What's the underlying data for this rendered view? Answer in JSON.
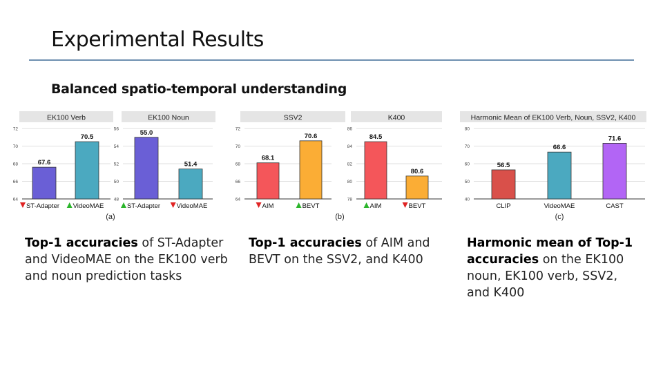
{
  "slide": {
    "title": "Experimental Results",
    "subtitle": "Balanced spatio-temporal understanding"
  },
  "captions": [
    {
      "bold": "Top-1 accuracies",
      "rest": " of ST-Adapter and VideoMAE on the EK100 verb and noun prediction tasks"
    },
    {
      "bold": "Top-1 accuracies",
      "rest": " of AIM and BEVT on the SSV2, and K400"
    },
    {
      "bold": "Harmonic mean of Top-1 accuracies",
      "rest": " on the EK100 noun, EK100 verb, SSV2, and K400"
    }
  ],
  "colors": {
    "st_adapter": "#6a5fd6",
    "videomae": "#4ba9c0",
    "aim": "#f4565a",
    "bevt": "#fbad35",
    "clip": "#d9504a",
    "cast": "#b265f5",
    "up_marker": "#2bb52b",
    "down_marker": "#e02424",
    "panel_header_bg": "#e5e5e5",
    "rule": "#6d8fb0"
  },
  "chart_data": [
    {
      "type": "bar",
      "title": "EK100 Verb",
      "panel_label": "(a)",
      "ylim": [
        64,
        72
      ],
      "yticks": [
        64,
        66,
        68,
        70,
        72
      ],
      "categories": [
        "ST-Adapter",
        "VideoMAE"
      ],
      "values": [
        67.6,
        70.5
      ],
      "labels": [
        "67.6",
        "70.5"
      ],
      "markers": [
        "down",
        "up"
      ],
      "colors": [
        "st_adapter",
        "videomae"
      ]
    },
    {
      "type": "bar",
      "title": "EK100 Noun",
      "panel_label": "",
      "ylim": [
        48,
        56
      ],
      "yticks": [
        48,
        50,
        52,
        54,
        56
      ],
      "categories": [
        "ST-Adapter",
        "VideoMAE"
      ],
      "values": [
        55.0,
        51.4
      ],
      "labels": [
        "55.0",
        "51.4"
      ],
      "markers": [
        "up",
        "down"
      ],
      "colors": [
        "st_adapter",
        "videomae"
      ]
    },
    {
      "type": "bar",
      "title": "SSV2",
      "panel_label": "(b)",
      "ylim": [
        64,
        72
      ],
      "yticks": [
        64,
        66,
        68,
        70,
        72
      ],
      "categories": [
        "AIM",
        "BEVT"
      ],
      "values": [
        68.1,
        70.6
      ],
      "labels": [
        "68.1",
        "70.6"
      ],
      "markers": [
        "down",
        "up"
      ],
      "colors": [
        "aim",
        "bevt"
      ]
    },
    {
      "type": "bar",
      "title": "K400",
      "panel_label": "",
      "ylim": [
        78,
        86
      ],
      "yticks": [
        78,
        80,
        82,
        84,
        86
      ],
      "categories": [
        "AIM",
        "BEVT"
      ],
      "values": [
        84.5,
        80.6
      ],
      "labels": [
        "84.5",
        "80.6"
      ],
      "markers": [
        "up",
        "down"
      ],
      "colors": [
        "aim",
        "bevt"
      ]
    },
    {
      "type": "bar",
      "title": "Harmonic Mean of EK100 Verb, Noun, SSV2, K400",
      "panel_label": "(c)",
      "ylim": [
        40,
        80
      ],
      "yticks": [
        40,
        50,
        60,
        70,
        80
      ],
      "categories": [
        "CLIP",
        "VideoMAE",
        "CAST"
      ],
      "values": [
        56.5,
        66.6,
        71.6
      ],
      "labels": [
        "56.5",
        "66.6",
        "71.6"
      ],
      "markers": [
        "",
        "",
        ""
      ],
      "colors": [
        "clip",
        "videomae",
        "cast"
      ]
    }
  ]
}
